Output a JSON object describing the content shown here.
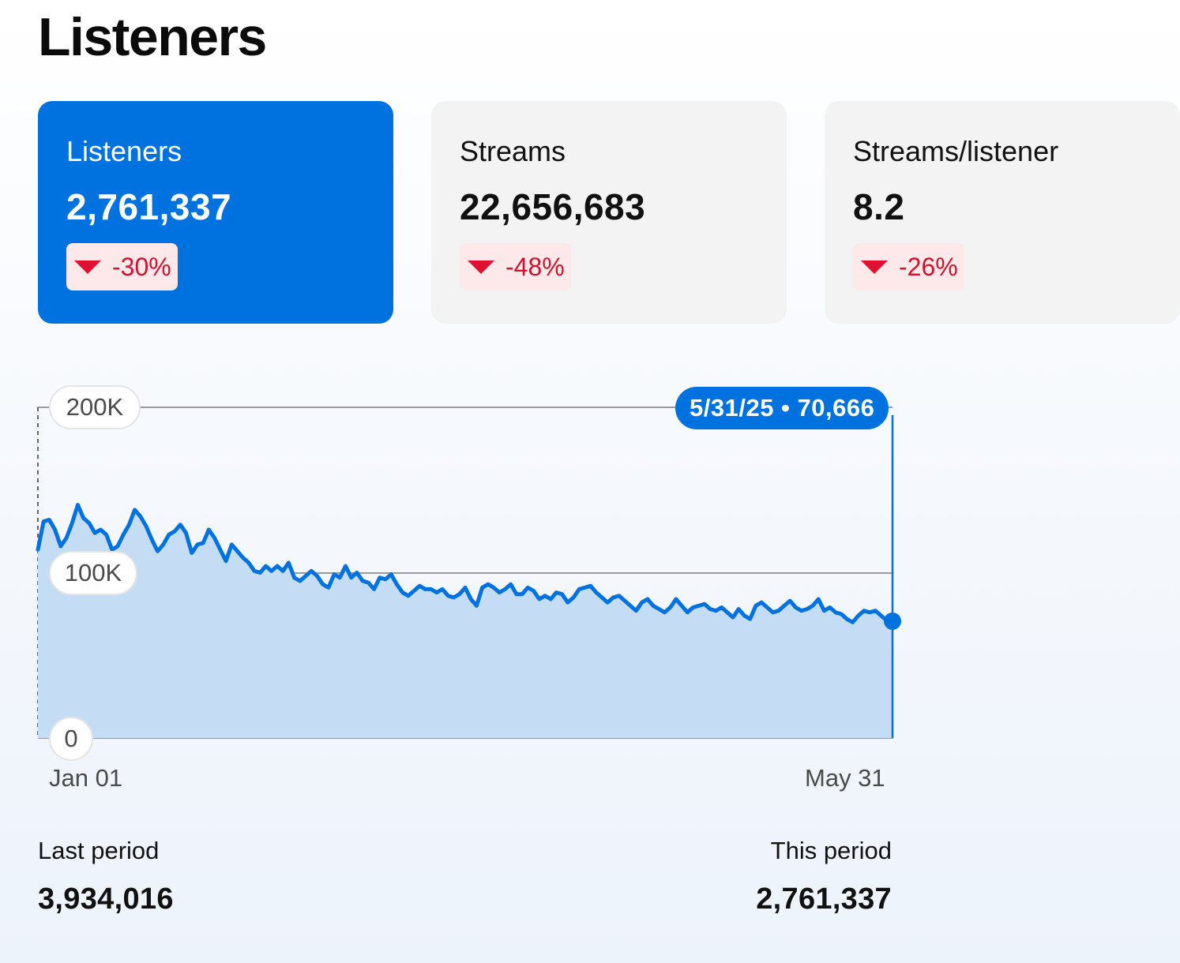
{
  "page_title": "Listeners",
  "cards": [
    {
      "label": "Listeners",
      "value": "2,761,337",
      "change": "-30%",
      "active": true
    },
    {
      "label": "Streams",
      "value": "22,656,683",
      "change": "-48%",
      "active": false
    },
    {
      "label": "Streams/listener",
      "value": "8.2",
      "change": "-26%",
      "active": false
    }
  ],
  "tooltip": {
    "date": "5/31/25",
    "value": "70,666",
    "text": "5/31/25 • 70,666"
  },
  "colors": {
    "accent": "#0072e0",
    "decline": "#e0102e",
    "decline_bg": "#fde9ea"
  },
  "footer": {
    "last_period_label": "Last period",
    "last_period_value": "3,934,016",
    "this_period_label": "This period",
    "this_period_value": "2,761,337"
  },
  "chart_data": {
    "type": "area",
    "x_start": "Jan 01",
    "x_end": "May 31",
    "x_tick_labels": [
      "Jan 01",
      "May 31"
    ],
    "y_tick_labels": [
      "0",
      "100K",
      "200K"
    ],
    "ylim": [
      0,
      200000
    ],
    "grid": true,
    "series": [
      {
        "values": [
          114000,
          131000,
          132000,
          126000,
          116000,
          121000,
          130000,
          141000,
          133000,
          130000,
          124000,
          126000,
          123000,
          114000,
          116000,
          123000,
          129000,
          138000,
          134000,
          128000,
          120000,
          113000,
          117000,
          123000,
          125000,
          129000,
          124000,
          112000,
          117000,
          118000,
          126000,
          121000,
          114000,
          107000,
          117000,
          113000,
          109000,
          106000,
          101000,
          100000,
          104000,
          101000,
          104000,
          101000,
          106000,
          97000,
          95000,
          98000,
          101000,
          98000,
          93000,
          91000,
          99000,
          97000,
          104000,
          97000,
          100000,
          95000,
          94000,
          90000,
          97000,
          96000,
          99000,
          93000,
          88000,
          86000,
          89000,
          92000,
          90000,
          90000,
          88000,
          90000,
          86000,
          85000,
          87000,
          91000,
          84000,
          80000,
          91000,
          93000,
          91000,
          88000,
          90000,
          93000,
          87000,
          87000,
          91000,
          89000,
          84000,
          86000,
          84000,
          88000,
          87000,
          82000,
          85000,
          90000,
          91000,
          92000,
          88000,
          85000,
          82000,
          85000,
          86000,
          83000,
          80000,
          77000,
          82000,
          84000,
          80000,
          78000,
          76000,
          79000,
          84000,
          80000,
          76000,
          79000,
          80000,
          81000,
          78000,
          77000,
          79000,
          76000,
          73000,
          78000,
          74000,
          72000,
          80000,
          82000,
          79000,
          76000,
          77000,
          80000,
          83000,
          79000,
          77000,
          78000,
          80000,
          84000,
          77000,
          79000,
          76000,
          75000,
          72000,
          70000,
          74000,
          77000,
          76000,
          77000,
          74000,
          71000,
          70666
        ]
      }
    ],
    "highlight": {
      "x": "5/31/25",
      "y": 70666
    }
  }
}
